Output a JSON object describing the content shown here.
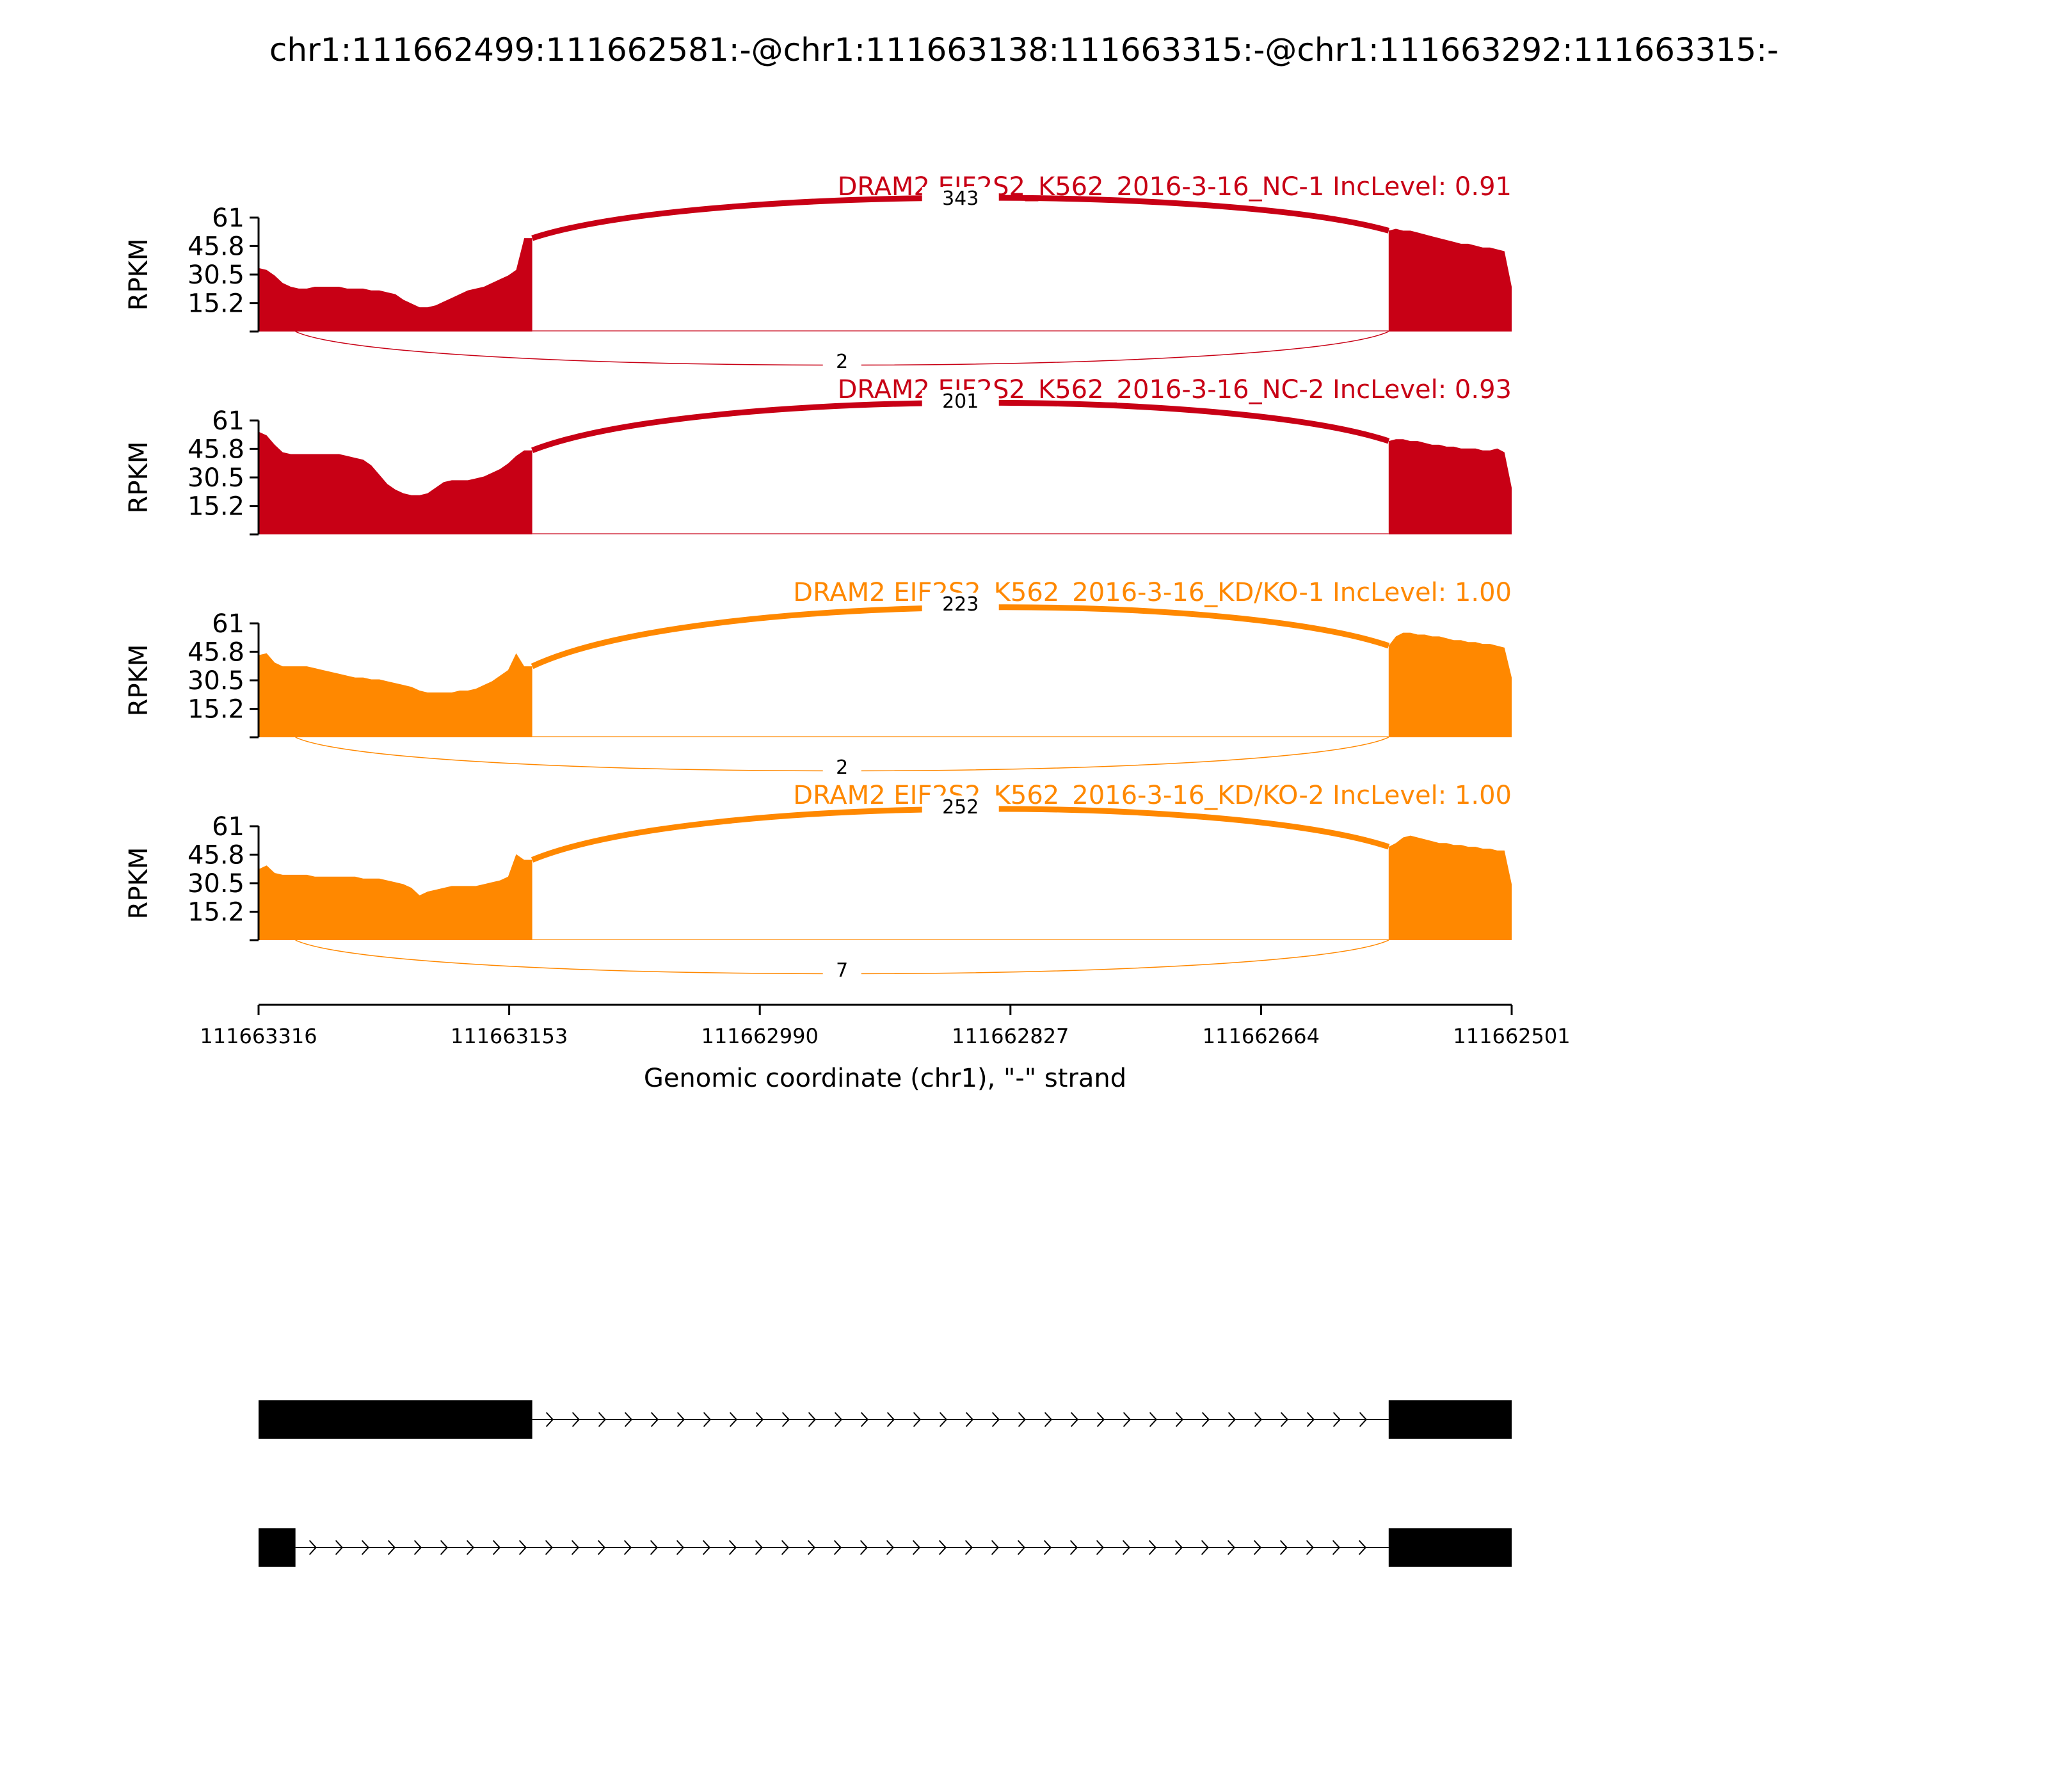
{
  "title": "chr1:111662499:111662581:-@chr1:111663138:111663315:-@chr1:111663292:111663315:-",
  "chart_data": {
    "type": "area",
    "x_axis": {
      "label": "Genomic coordinate (chr1), \"-\" strand",
      "start": 111663316,
      "end": 111662501,
      "ticks": [
        "111663316",
        "111663153",
        "111662990",
        "111662827",
        "111662664",
        "111662501"
      ]
    },
    "y_axis": {
      "label": "RPKM",
      "range": [
        0,
        61
      ],
      "ticks": [
        "61",
        "45.8",
        "30.5",
        "15.2"
      ]
    },
    "exons": [
      {
        "start": 111663316,
        "end": 111663138
      },
      {
        "start": 111662581,
        "end": 111662501
      }
    ],
    "tracks": [
      {
        "label": "DRAM2 EIF2S2_K562_2016-3-16_NC-1 IncLevel: 0.91",
        "color": "#c80015",
        "junction_upper": "343",
        "junction_lower": "2",
        "coverage_left": [
          34,
          33,
          30,
          26,
          24,
          23,
          23,
          24,
          24,
          24,
          24,
          23,
          23,
          23,
          22,
          22,
          21,
          20,
          17,
          15,
          13,
          13,
          14,
          16,
          18,
          20,
          22,
          23,
          24,
          26,
          28,
          30,
          33,
          50,
          50
        ],
        "coverage_right": [
          54,
          55,
          54,
          54,
          53,
          52,
          51,
          50,
          49,
          48,
          47,
          47,
          46,
          45,
          45,
          44,
          43,
          24
        ]
      },
      {
        "label": "DRAM2 EIF2S2_K562_2016-3-16_NC-2 IncLevel: 0.93",
        "color": "#c80015",
        "junction_upper": "201",
        "junction_lower": "",
        "coverage_left": [
          55,
          53,
          48,
          44,
          43,
          43,
          43,
          43,
          43,
          43,
          43,
          42,
          41,
          40,
          37,
          32,
          27,
          24,
          22,
          21,
          21,
          22,
          25,
          28,
          29,
          29,
          29,
          30,
          31,
          33,
          35,
          38,
          42,
          45,
          45
        ],
        "coverage_right": [
          50,
          51,
          51,
          50,
          50,
          49,
          48,
          48,
          47,
          47,
          46,
          46,
          46,
          45,
          45,
          46,
          44,
          25
        ]
      },
      {
        "label": "DRAM2 EIF2S2_K562_2016-3-16_KD/KO-1 IncLevel: 1.00",
        "color": "#ff8800",
        "junction_upper": "223",
        "junction_lower": "2",
        "coverage_left": [
          44,
          45,
          40,
          38,
          38,
          38,
          38,
          37,
          36,
          35,
          34,
          33,
          32,
          32,
          31,
          31,
          30,
          29,
          28,
          27,
          25,
          24,
          24,
          24,
          24,
          25,
          25,
          26,
          28,
          30,
          33,
          36,
          45,
          38,
          38
        ],
        "coverage_right": [
          49,
          54,
          56,
          56,
          55,
          55,
          54,
          54,
          53,
          52,
          52,
          51,
          51,
          50,
          50,
          49,
          48,
          32
        ]
      },
      {
        "label": "DRAM2 EIF2S2_K562_2016-3-16_KD/KO-2 IncLevel: 1.00",
        "color": "#ff8800",
        "junction_upper": "252",
        "junction_lower": "7",
        "coverage_left": [
          38,
          40,
          36,
          35,
          35,
          35,
          35,
          34,
          34,
          34,
          34,
          34,
          34,
          33,
          33,
          33,
          32,
          31,
          30,
          28,
          24,
          26,
          27,
          28,
          29,
          29,
          29,
          29,
          30,
          31,
          32,
          34,
          46,
          43,
          43
        ],
        "coverage_right": [
          50,
          52,
          55,
          56,
          55,
          54,
          53,
          52,
          52,
          51,
          51,
          50,
          50,
          49,
          49,
          48,
          48,
          30
        ]
      }
    ],
    "transcripts": [
      {
        "exons": [
          {
            "start": 111663316,
            "end": 111663138
          },
          {
            "start": 111662581,
            "end": 111662501
          }
        ]
      },
      {
        "exons": [
          {
            "start": 111663316,
            "end": 111663292
          },
          {
            "start": 111662581,
            "end": 111662501
          }
        ]
      }
    ]
  }
}
